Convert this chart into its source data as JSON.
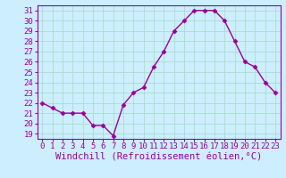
{
  "x": [
    0,
    1,
    2,
    3,
    4,
    5,
    6,
    7,
    8,
    9,
    10,
    11,
    12,
    13,
    14,
    15,
    16,
    17,
    18,
    19,
    20,
    21,
    22,
    23
  ],
  "y": [
    22.0,
    21.5,
    21.0,
    21.0,
    21.0,
    19.8,
    19.8,
    18.8,
    21.8,
    23.0,
    23.5,
    25.5,
    27.0,
    29.0,
    30.0,
    31.0,
    31.0,
    31.0,
    30.0,
    28.0,
    26.0,
    25.5,
    24.0,
    23.0
  ],
  "line_color": "#990099",
  "marker": "D",
  "markersize": 2.5,
  "linewidth": 1.0,
  "xlabel": "Windchill (Refroidissement éolien,°C)",
  "xlim": [
    -0.5,
    23.5
  ],
  "ylim": [
    18.5,
    31.5
  ],
  "yticks": [
    19,
    20,
    21,
    22,
    23,
    24,
    25,
    26,
    27,
    28,
    29,
    30,
    31
  ],
  "xticks": [
    0,
    1,
    2,
    3,
    4,
    5,
    6,
    7,
    8,
    9,
    10,
    11,
    12,
    13,
    14,
    15,
    16,
    17,
    18,
    19,
    20,
    21,
    22,
    23
  ],
  "bg_color": "#cceeff",
  "grid_color": "#aaddcc",
  "tick_fontsize": 6.5,
  "xlabel_fontsize": 7.5
}
